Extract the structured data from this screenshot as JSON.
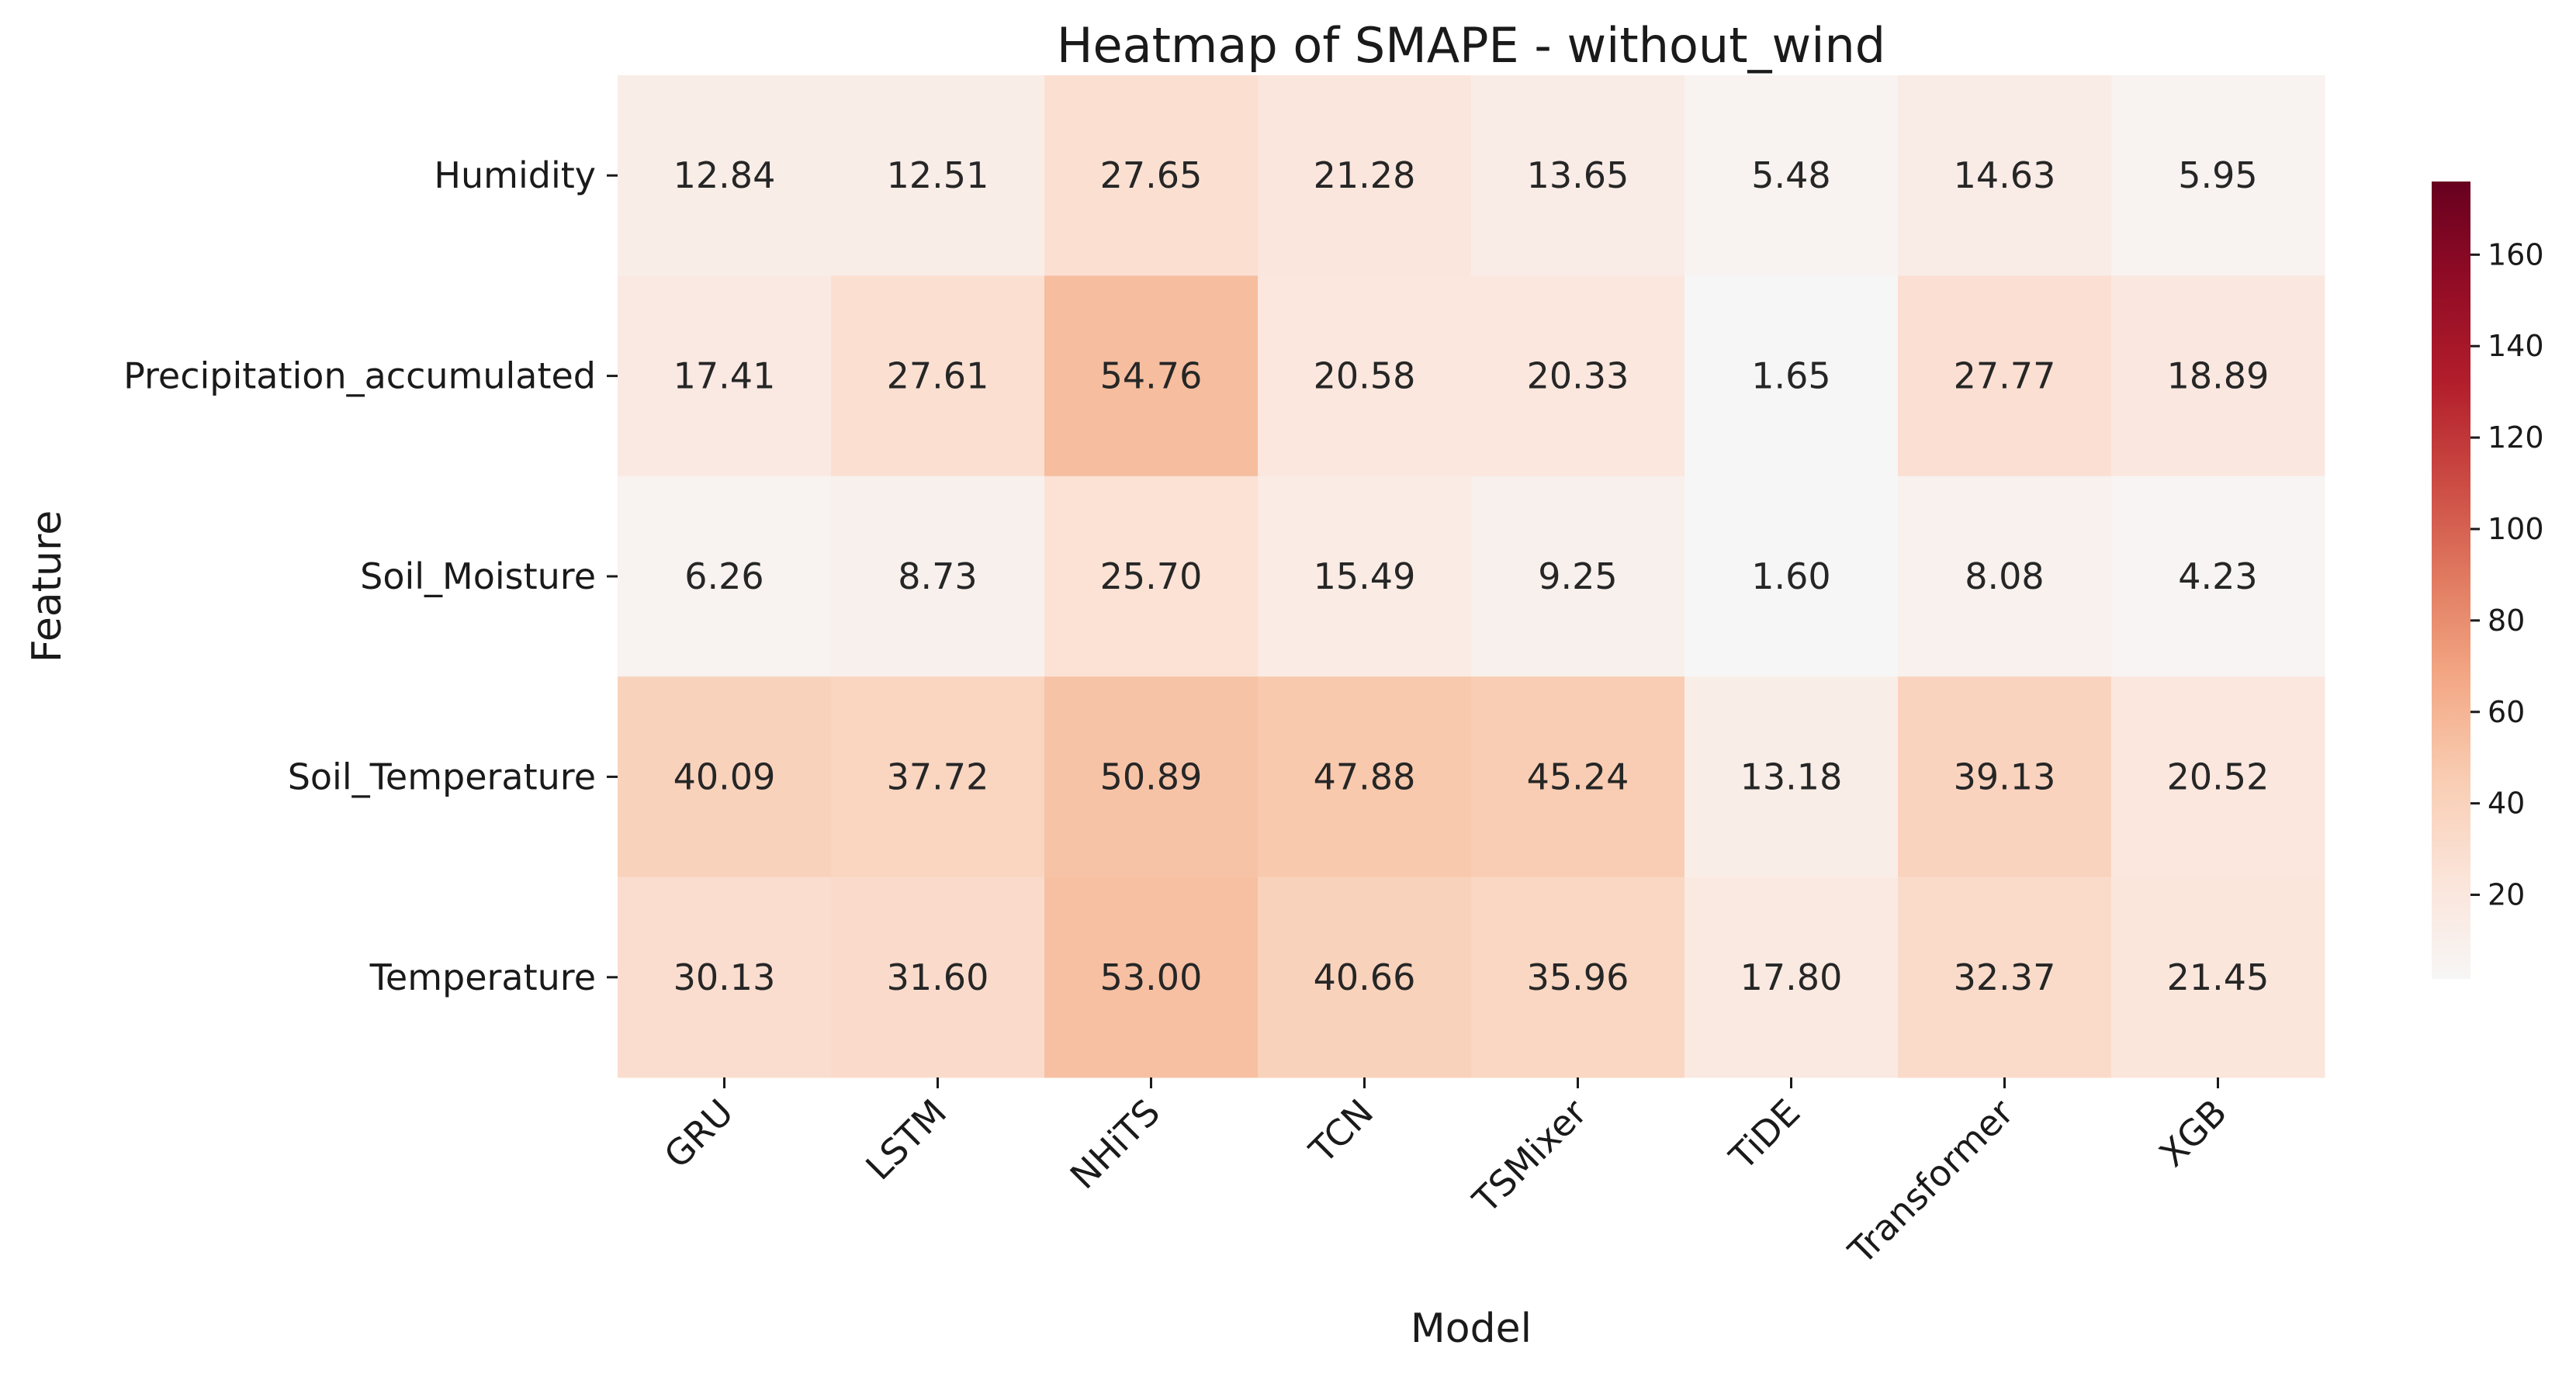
{
  "chart_data": {
    "type": "heatmap",
    "title": "Heatmap of SMAPE - without_wind",
    "xlabel": "Model",
    "ylabel": "Feature",
    "x_categories": [
      "GRU",
      "LSTM",
      "NHiTS",
      "TCN",
      "TSMixer",
      "TiDE",
      "Transformer",
      "XGB"
    ],
    "y_categories": [
      "Humidity",
      "Precipitation_accumulated",
      "Soil_Moisture",
      "Soil_Temperature",
      "Temperature"
    ],
    "values": [
      [
        12.84,
        12.51,
        27.65,
        21.28,
        13.65,
        5.48,
        14.63,
        5.95
      ],
      [
        17.41,
        27.61,
        54.76,
        20.58,
        20.33,
        1.65,
        27.77,
        18.89
      ],
      [
        6.26,
        8.73,
        25.7,
        15.49,
        9.25,
        1.6,
        8.08,
        4.23
      ],
      [
        40.09,
        37.72,
        50.89,
        47.88,
        45.24,
        13.18,
        39.13,
        20.52
      ],
      [
        30.13,
        31.6,
        53.0,
        40.66,
        35.96,
        17.8,
        32.37,
        21.45
      ]
    ],
    "value_format": "2 decimals",
    "colormap": "Reds (RdBu_r upper half)",
    "colorbar": {
      "min": 1.6,
      "max": 176,
      "ticks": [
        20,
        40,
        60,
        80,
        100,
        120,
        140,
        160
      ],
      "position": "right"
    },
    "grid": false
  }
}
